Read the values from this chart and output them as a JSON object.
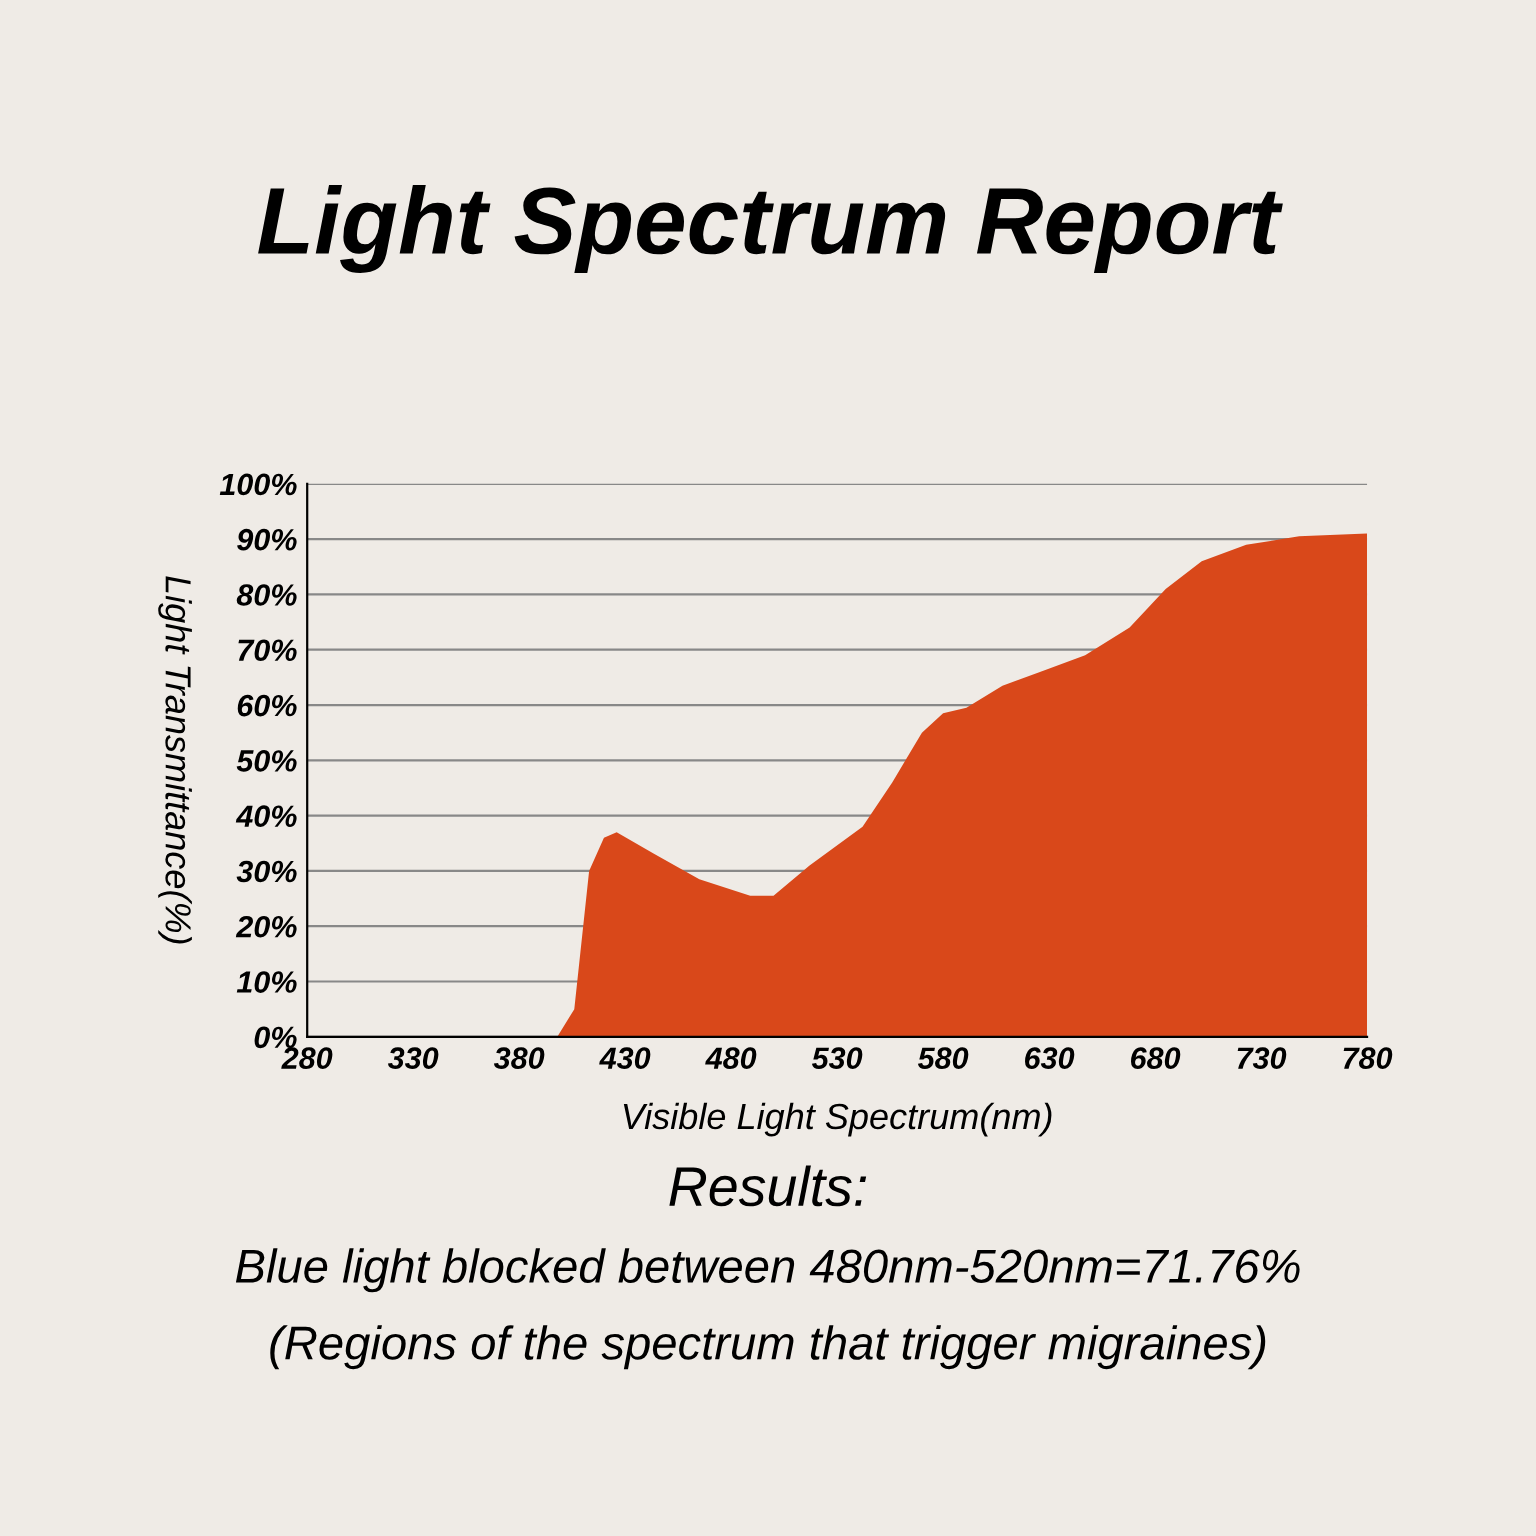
{
  "chart_data": {
    "type": "area",
    "title": "Light Spectrum Report",
    "xlabel": "Visible Light Spectrum(nm)",
    "ylabel": "Light Transmittance(%)",
    "annotations": [
      "Results:",
      "Blue light blocked between 480nm-520nm=71.76%",
      "(Regions of the spectrum that trigger migraines)"
    ],
    "x": [
      398,
      406,
      413,
      420,
      426,
      444,
      465,
      489,
      500,
      517,
      542,
      556,
      570,
      580,
      591,
      608,
      626,
      647,
      668,
      685,
      702,
      723,
      748,
      780
    ],
    "series": [
      {
        "color": "#d9481a",
        "values": [
          0,
          5,
          30,
          36,
          37,
          33,
          28.5,
          25.5,
          25.5,
          31,
          38,
          46,
          55,
          58.5,
          59.5,
          63.5,
          66,
          69,
          74,
          81,
          86,
          89,
          90.5,
          91
        ]
      }
    ],
    "xlim": [
      280,
      780
    ],
    "xticks": [
      280,
      330,
      380,
      430,
      480,
      530,
      580,
      630,
      680,
      730,
      780
    ],
    "ylim": [
      0,
      100
    ],
    "yticks": [
      {
        "value": 0,
        "label": "0%"
      },
      {
        "value": 10,
        "label": "10%"
      },
      {
        "value": 20,
        "label": "20%"
      },
      {
        "value": 30,
        "label": "30%"
      },
      {
        "value": 40,
        "label": "40%"
      },
      {
        "value": 50,
        "label": "50%"
      },
      {
        "value": 60,
        "label": "60%"
      },
      {
        "value": 70,
        "label": "70%"
      },
      {
        "value": 80,
        "label": "80%"
      },
      {
        "value": 90,
        "label": "90%"
      },
      {
        "value": 100,
        "label": "100%"
      }
    ],
    "grid": "y",
    "legend": false
  }
}
